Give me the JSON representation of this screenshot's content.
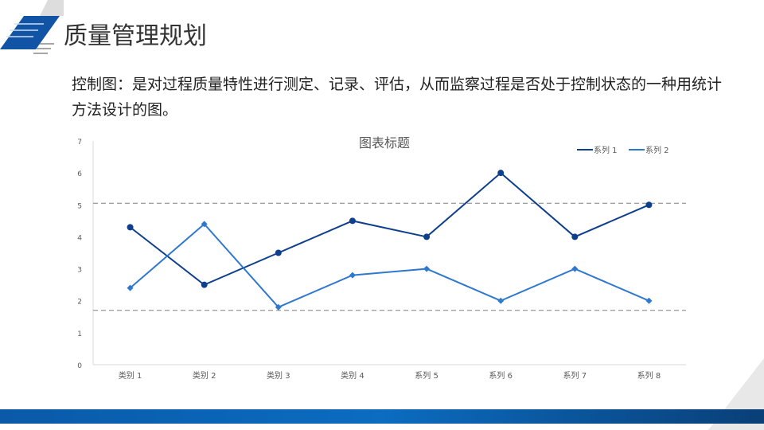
{
  "header": {
    "title": "质量管理规划"
  },
  "description": "控制图：是对过程质量特性进行测定、记录、评估，从而监察过程是否处于控制状态的一种用统计方法设计的图。",
  "chart_data": {
    "type": "line",
    "title": "图表标题",
    "categories": [
      "类别 1",
      "类别 2",
      "类别 3",
      "类别 4",
      "系列 5",
      "系列 6",
      "系列 7",
      "系列 8"
    ],
    "series": [
      {
        "name": "系列 1",
        "color": "#0e3f8c",
        "marker": "circle",
        "values": [
          4.3,
          2.5,
          3.5,
          4.5,
          4.0,
          6.0,
          4.0,
          5.0
        ]
      },
      {
        "name": "系列 2",
        "color": "#2f78cf",
        "marker": "diamond",
        "values": [
          2.4,
          4.4,
          1.8,
          2.8,
          3.0,
          2.0,
          3.0,
          2.0
        ]
      }
    ],
    "control_limits": {
      "upper": 5.05,
      "lower": 1.7
    },
    "ylim": [
      0,
      7
    ],
    "yticks": [
      "0",
      "1",
      "2",
      "3",
      "4",
      "5",
      "6",
      "7"
    ],
    "legend": "top-right",
    "grid": false
  }
}
